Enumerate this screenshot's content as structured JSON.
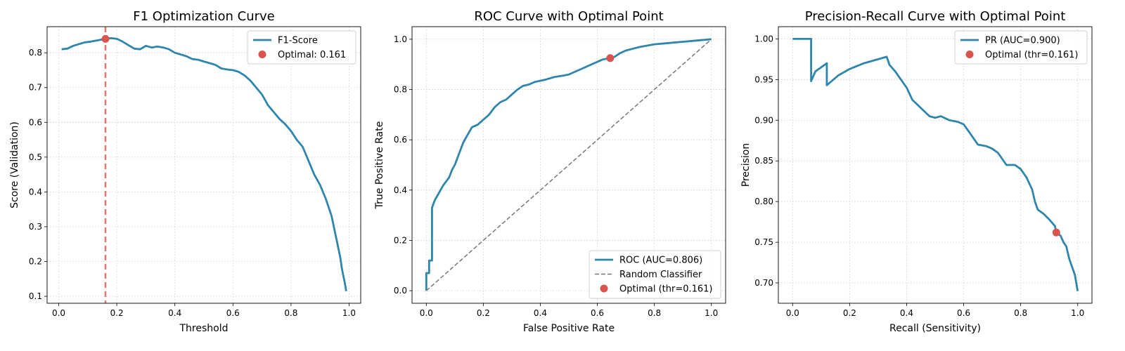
{
  "colors": {
    "curve": "#2e86ab",
    "optimal": "#d9534f",
    "threshold_line": "#e07b73",
    "random": "#777777",
    "grid": "#cccccc"
  },
  "chart_data": [
    {
      "type": "line",
      "title": "F1 Optimization Curve",
      "xlabel": "Threshold",
      "ylabel": "Score (Validation)",
      "xlim": [
        -0.04,
        1.04
      ],
      "ylim": [
        0.08,
        0.875
      ],
      "xticks": [
        0.0,
        0.2,
        0.4,
        0.6,
        0.8,
        1.0
      ],
      "xtick_labels": [
        "0.0",
        "0.2",
        "0.4",
        "0.6",
        "0.8",
        "1.0"
      ],
      "yticks": [
        0.1,
        0.2,
        0.3,
        0.4,
        0.5,
        0.6,
        0.7,
        0.8
      ],
      "ytick_labels": [
        "0.1",
        "0.2",
        "0.3",
        "0.4",
        "0.5",
        "0.6",
        "0.7",
        "0.8"
      ],
      "grid": true,
      "legend_position": "top-right",
      "series": [
        {
          "name": "F1-Score",
          "style": "line",
          "x": [
            0.01,
            0.03,
            0.05,
            0.07,
            0.09,
            0.11,
            0.13,
            0.15,
            0.161,
            0.18,
            0.2,
            0.22,
            0.24,
            0.26,
            0.28,
            0.3,
            0.32,
            0.34,
            0.36,
            0.38,
            0.4,
            0.42,
            0.44,
            0.46,
            0.48,
            0.5,
            0.52,
            0.54,
            0.56,
            0.58,
            0.6,
            0.62,
            0.64,
            0.66,
            0.68,
            0.7,
            0.72,
            0.74,
            0.76,
            0.78,
            0.8,
            0.82,
            0.84,
            0.86,
            0.88,
            0.9,
            0.92,
            0.94,
            0.95,
            0.96,
            0.97,
            0.975,
            0.98,
            0.985,
            0.99
          ],
          "y": [
            0.81,
            0.812,
            0.82,
            0.825,
            0.83,
            0.832,
            0.835,
            0.838,
            0.84,
            0.842,
            0.84,
            0.832,
            0.822,
            0.812,
            0.81,
            0.82,
            0.815,
            0.818,
            0.815,
            0.81,
            0.8,
            0.795,
            0.79,
            0.782,
            0.78,
            0.775,
            0.77,
            0.765,
            0.755,
            0.752,
            0.75,
            0.745,
            0.735,
            0.72,
            0.7,
            0.68,
            0.65,
            0.63,
            0.61,
            0.595,
            0.575,
            0.55,
            0.53,
            0.49,
            0.45,
            0.42,
            0.38,
            0.33,
            0.29,
            0.25,
            0.21,
            0.18,
            0.16,
            0.14,
            0.115
          ]
        },
        {
          "name": "Optimal: 0.161",
          "style": "point",
          "x": [
            0.161
          ],
          "y": [
            0.84
          ]
        }
      ],
      "vlines": [
        0.161
      ]
    },
    {
      "type": "line",
      "title": "ROC Curve with Optimal Point",
      "xlabel": "False Positive Rate",
      "ylabel": "True Positive Rate",
      "xlim": [
        -0.05,
        1.05
      ],
      "ylim": [
        -0.05,
        1.05
      ],
      "xticks": [
        0.0,
        0.2,
        0.4,
        0.6,
        0.8,
        1.0
      ],
      "xtick_labels": [
        "0.0",
        "0.2",
        "0.4",
        "0.6",
        "0.8",
        "1.0"
      ],
      "yticks": [
        0.0,
        0.2,
        0.4,
        0.6,
        0.8,
        1.0
      ],
      "ytick_labels": [
        "0.0",
        "0.2",
        "0.4",
        "0.6",
        "0.8",
        "1.0"
      ],
      "grid": true,
      "legend_position": "bottom-right",
      "series": [
        {
          "name": "ROC (AUC=0.806)",
          "style": "line",
          "x": [
            0.0,
            0.0,
            0.01,
            0.01,
            0.02,
            0.02,
            0.03,
            0.04,
            0.05,
            0.06,
            0.08,
            0.09,
            0.1,
            0.11,
            0.12,
            0.13,
            0.14,
            0.15,
            0.16,
            0.18,
            0.2,
            0.22,
            0.24,
            0.26,
            0.28,
            0.3,
            0.32,
            0.34,
            0.36,
            0.38,
            0.4,
            0.42,
            0.45,
            0.48,
            0.5,
            0.52,
            0.55,
            0.58,
            0.6,
            0.62,
            0.645,
            0.66,
            0.68,
            0.7,
            0.75,
            0.8,
            0.85,
            0.9,
            0.95,
            1.0
          ],
          "y": [
            0.0,
            0.07,
            0.07,
            0.12,
            0.12,
            0.33,
            0.36,
            0.38,
            0.4,
            0.42,
            0.45,
            0.48,
            0.5,
            0.53,
            0.56,
            0.59,
            0.61,
            0.63,
            0.65,
            0.66,
            0.68,
            0.7,
            0.73,
            0.75,
            0.76,
            0.78,
            0.8,
            0.815,
            0.82,
            0.83,
            0.835,
            0.84,
            0.85,
            0.855,
            0.86,
            0.87,
            0.885,
            0.9,
            0.91,
            0.92,
            0.925,
            0.93,
            0.945,
            0.955,
            0.97,
            0.98,
            0.985,
            0.99,
            0.995,
            1.0
          ]
        },
        {
          "name": "Random Classifier",
          "style": "dashed",
          "x": [
            0.0,
            1.0
          ],
          "y": [
            0.0,
            1.0
          ]
        },
        {
          "name": "Optimal (thr=0.161)",
          "style": "point",
          "x": [
            0.645
          ],
          "y": [
            0.925
          ]
        }
      ]
    },
    {
      "type": "line",
      "title": "Precision-Recall Curve with Optimal Point",
      "xlabel": "Recall (Sensitivity)",
      "ylabel": "Precision",
      "xlim": [
        -0.05,
        1.05
      ],
      "ylim": [
        0.675,
        1.015
      ],
      "xticks": [
        0.0,
        0.2,
        0.4,
        0.6,
        0.8,
        1.0
      ],
      "xtick_labels": [
        "0.0",
        "0.2",
        "0.4",
        "0.6",
        "0.8",
        "1.0"
      ],
      "yticks": [
        0.7,
        0.75,
        0.8,
        0.85,
        0.9,
        0.95,
        1.0
      ],
      "ytick_labels": [
        "0.70",
        "0.75",
        "0.80",
        "0.85",
        "0.90",
        "0.95",
        "1.00"
      ],
      "grid": true,
      "legend_position": "top-right",
      "series": [
        {
          "name": "PR (AUC=0.900)",
          "style": "line",
          "x": [
            0.0,
            0.065,
            0.065,
            0.08,
            0.12,
            0.12,
            0.16,
            0.2,
            0.25,
            0.3,
            0.33,
            0.34,
            0.36,
            0.38,
            0.4,
            0.42,
            0.45,
            0.48,
            0.5,
            0.52,
            0.55,
            0.58,
            0.6,
            0.62,
            0.65,
            0.68,
            0.7,
            0.72,
            0.75,
            0.78,
            0.8,
            0.82,
            0.84,
            0.85,
            0.86,
            0.88,
            0.9,
            0.92,
            0.925,
            0.94,
            0.95,
            0.96,
            0.97,
            0.98,
            0.99,
            1.0
          ],
          "y": [
            1.0,
            1.0,
            0.948,
            0.96,
            0.97,
            0.943,
            0.955,
            0.963,
            0.97,
            0.975,
            0.978,
            0.968,
            0.96,
            0.95,
            0.94,
            0.925,
            0.915,
            0.905,
            0.903,
            0.905,
            0.9,
            0.898,
            0.895,
            0.885,
            0.87,
            0.868,
            0.865,
            0.86,
            0.845,
            0.845,
            0.84,
            0.83,
            0.815,
            0.8,
            0.79,
            0.785,
            0.778,
            0.77,
            0.762,
            0.758,
            0.75,
            0.745,
            0.73,
            0.72,
            0.71,
            0.69
          ]
        },
        {
          "name": "Optimal (thr=0.161)",
          "style": "point",
          "x": [
            0.925
          ],
          "y": [
            0.762
          ]
        }
      ]
    }
  ]
}
